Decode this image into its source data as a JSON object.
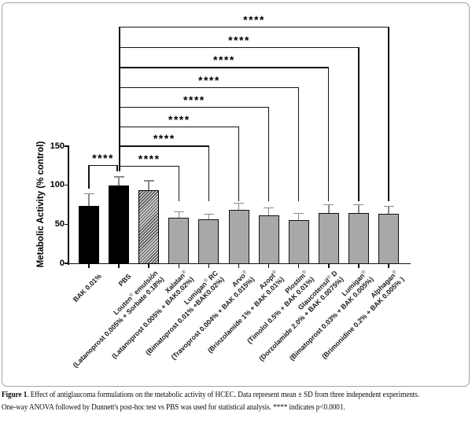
{
  "figure": {
    "caption": {
      "figure_label": "Figure 1",
      "line1_rest": ". Effect of antiglaucoma formulations on the metabolic activity of HCEC. Data represent mean ± SD from three independent experiments.",
      "line2": "One-way ANOVA followed by Dunnett's post-hoc test vs PBS was used for statistical analysis. **** indicates p<0.0001."
    }
  },
  "chart_data": {
    "type": "bar",
    "title": "",
    "xlabel": "",
    "ylabel": "Metabolic Activity (% control)",
    "ylim": [
      0,
      150
    ],
    "yticks": [
      0,
      50,
      100,
      150
    ],
    "grid": false,
    "legend": "none",
    "categories": [
      "BAK 0.01%",
      "PBS",
      "Louten® emulsión",
      "Xalatan®",
      "Lumigan® RC",
      "Arvo®",
      "Azopt®",
      "Plostim®",
      "Glaucotensil® D",
      "Lumigan®",
      "Alphagan®"
    ],
    "compositions": [
      "",
      "",
      "(Latanoprost 0,005% + Sorbate 0.18%)",
      "(Latanoprost 0.005% + BAK0.02%)",
      "(Bimatoprost 0.01% +BAK0.02%)",
      "(Travoprost 0.004% + BAK 0.015%)",
      "(Brinzolamide 1% + BAK 0.01%)",
      "(Timolol 0.5% + BAK 0.01%)",
      "(Dorzolamide 2.0% + BAK 0.0075%)",
      "(Bimatoprost 0.03% + BAK 0.005%)",
      "(Brimonidine 0.2% + BAK 0.005% )"
    ],
    "values": [
      73,
      100,
      94,
      58,
      56,
      68,
      61,
      55,
      64,
      64,
      63
    ],
    "sd": [
      16,
      11,
      12,
      8,
      7,
      9,
      10,
      9,
      11,
      11,
      10
    ],
    "bar_styles": [
      "black",
      "black",
      "hatch",
      "gray",
      "gray",
      "gray",
      "gray",
      "gray",
      "gray",
      "gray",
      "gray"
    ],
    "colors": {
      "black_bar": "#000000",
      "gray_bar": "#a8a8a8",
      "hatch_background": "#c9c9c9",
      "error_bar": "#8a8a8a",
      "bracket": "#141414",
      "box_border": "#a3a3a3"
    },
    "significance": {
      "label": "****",
      "reference": "PBS",
      "comparisons": [
        "BAK 0.01%",
        "Xalatan®",
        "Lumigan® RC",
        "Arvo®",
        "Azopt®",
        "Plostim®",
        "Glaucotensil® D",
        "Lumigan®",
        "Alphagan®"
      ]
    }
  }
}
